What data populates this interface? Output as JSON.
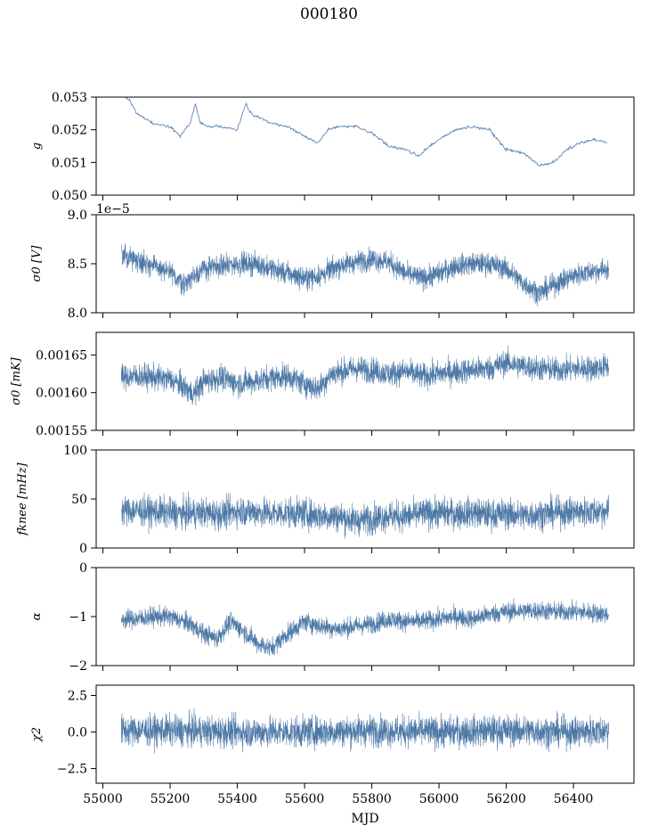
{
  "figure": {
    "title": "000180",
    "series_color": "#4e79a7"
  },
  "chart_data": [
    {
      "type": "line",
      "ylabel": "g",
      "ylim": [
        0.05,
        0.053
      ],
      "yticks": [
        0.05,
        0.051,
        0.052,
        0.053
      ],
      "yticklabels": [
        "0.050",
        "0.051",
        "0.052",
        "0.053"
      ],
      "xlim": [
        54980,
        56580
      ],
      "xticks": [
        55000,
        55200,
        55400,
        55600,
        55800,
        56000,
        56200,
        56400
      ],
      "xticklabels": [],
      "offset_label": "",
      "noise": 3e-05,
      "x": [
        55050,
        55080,
        55100,
        55150,
        55200,
        55230,
        55260,
        55275,
        55290,
        55320,
        55360,
        55400,
        55425,
        55440,
        55500,
        55550,
        55600,
        55640,
        55670,
        55700,
        55750,
        55800,
        55850,
        55900,
        55940,
        55960,
        56000,
        56050,
        56100,
        56150,
        56200,
        56250,
        56300,
        56340,
        56380,
        56420,
        56460,
        56500
      ],
      "y": [
        0.0531,
        0.0529,
        0.0525,
        0.0522,
        0.0521,
        0.0518,
        0.0522,
        0.0528,
        0.0522,
        0.0521,
        0.0521,
        0.052,
        0.0528,
        0.0525,
        0.0522,
        0.0521,
        0.0518,
        0.0516,
        0.052,
        0.0521,
        0.0521,
        0.0519,
        0.0515,
        0.0514,
        0.0512,
        0.0514,
        0.0517,
        0.052,
        0.0521,
        0.052,
        0.0514,
        0.0513,
        0.0509,
        0.051,
        0.0514,
        0.0516,
        0.0517,
        0.0516
      ]
    },
    {
      "type": "line",
      "ylabel": "σ0 [V]",
      "ylim": [
        8e-05,
        9e-05
      ],
      "yticks": [
        8e-05,
        8.5e-05,
        9e-05
      ],
      "yticklabels": [
        "8.0",
        "8.5",
        "9.0"
      ],
      "xlim": [
        54980,
        56580
      ],
      "xticks": [
        55000,
        55200,
        55400,
        55600,
        55800,
        56000,
        56200,
        56400
      ],
      "xticklabels": [],
      "offset_label": "1e−5",
      "noise": 8e-07,
      "x": [
        55055,
        55100,
        55150,
        55200,
        55240,
        55300,
        55400,
        55450,
        55500,
        55550,
        55600,
        55650,
        55700,
        55800,
        55850,
        55900,
        55950,
        56000,
        56050,
        56100,
        56150,
        56200,
        56250,
        56300,
        56350,
        56400,
        56450,
        56505
      ],
      "y": [
        8.58e-05,
        8.55e-05,
        8.48e-05,
        8.4e-05,
        8.3e-05,
        8.45e-05,
        8.5e-05,
        8.5e-05,
        8.45e-05,
        8.4e-05,
        8.35e-05,
        8.38e-05,
        8.48e-05,
        8.55e-05,
        8.52e-05,
        8.4e-05,
        8.35e-05,
        8.4e-05,
        8.48e-05,
        8.5e-05,
        8.5e-05,
        8.45e-05,
        8.3e-05,
        8.2e-05,
        8.3e-05,
        8.38e-05,
        8.42e-05,
        8.45e-05
      ]
    },
    {
      "type": "line",
      "ylabel": "σ0 [mK]",
      "ylim": [
        0.00155,
        0.00168
      ],
      "yticks": [
        0.00155,
        0.0016,
        0.00165
      ],
      "yticklabels": [
        "0.00155",
        "0.00160",
        "0.00165"
      ],
      "xlim": [
        54980,
        56580
      ],
      "xticks": [
        55000,
        55200,
        55400,
        55600,
        55800,
        56000,
        56200,
        56400
      ],
      "xticklabels": [],
      "offset_label": "",
      "noise": 1.2e-05,
      "x": [
        55055,
        55100,
        55150,
        55200,
        55240,
        55270,
        55300,
        55350,
        55400,
        55450,
        55500,
        55550,
        55600,
        55640,
        55680,
        55750,
        55800,
        55850,
        55900,
        55950,
        56000,
        56050,
        56100,
        56150,
        56200,
        56250,
        56300,
        56350,
        56400,
        56450,
        56505
      ],
      "y": [
        0.00162,
        0.001622,
        0.00162,
        0.001618,
        0.001608,
        0.001598,
        0.001615,
        0.00162,
        0.001612,
        0.001615,
        0.00162,
        0.001622,
        0.001612,
        0.001605,
        0.001625,
        0.001632,
        0.00163,
        0.001625,
        0.001628,
        0.001622,
        0.001625,
        0.001628,
        0.00163,
        0.001632,
        0.00164,
        0.001635,
        0.001632,
        0.00163,
        0.001632,
        0.001632,
        0.001635
      ]
    },
    {
      "type": "line",
      "ylabel": "fknee [mHz]",
      "ylim": [
        0,
        100
      ],
      "yticks": [
        0,
        50,
        100
      ],
      "yticklabels": [
        "0",
        "50",
        "100"
      ],
      "xlim": [
        54980,
        56580
      ],
      "xticks": [
        55000,
        55200,
        55400,
        55600,
        55800,
        56000,
        56200,
        56400
      ],
      "xticklabels": [],
      "offset_label": "",
      "noise": 11,
      "x": [
        55055,
        55100,
        55150,
        55200,
        55250,
        55300,
        55350,
        55400,
        55450,
        55500,
        55550,
        55600,
        55650,
        55700,
        55750,
        55800,
        55850,
        55900,
        55950,
        56000,
        56050,
        56100,
        56150,
        56200,
        56250,
        56300,
        56350,
        56400,
        56450,
        56505
      ],
      "y": [
        38,
        38,
        37,
        36,
        35,
        36,
        34,
        38,
        37,
        35,
        36,
        35,
        33,
        32,
        28,
        30,
        33,
        32,
        35,
        36,
        35,
        36,
        34,
        35,
        33,
        35,
        36,
        37,
        37,
        38
      ]
    },
    {
      "type": "line",
      "ylabel": "α",
      "ylim": [
        -2,
        0
      ],
      "yticks": [
        -2,
        -1,
        0
      ],
      "yticklabels": [
        "−2",
        "−1",
        "0"
      ],
      "xlim": [
        54980,
        56580
      ],
      "xticks": [
        55000,
        55200,
        55400,
        55600,
        55800,
        56000,
        56200,
        56400
      ],
      "xticklabels": [],
      "offset_label": "",
      "noise": 0.14,
      "x": [
        55055,
        55100,
        55150,
        55200,
        55260,
        55300,
        55340,
        55380,
        55420,
        55460,
        55500,
        55540,
        55600,
        55650,
        55700,
        55750,
        55800,
        55850,
        55900,
        55950,
        56000,
        56050,
        56100,
        56150,
        56200,
        56250,
        56300,
        56350,
        56400,
        56450,
        56505
      ],
      "y": [
        -1.05,
        -1.05,
        -1.0,
        -1.0,
        -1.15,
        -1.35,
        -1.45,
        -1.1,
        -1.3,
        -1.55,
        -1.65,
        -1.4,
        -1.1,
        -1.2,
        -1.25,
        -1.2,
        -1.15,
        -1.05,
        -1.1,
        -1.1,
        -1.05,
        -1.0,
        -1.05,
        -0.95,
        -0.9,
        -0.88,
        -0.88,
        -0.9,
        -0.9,
        -0.92,
        -0.95
      ]
    },
    {
      "type": "line",
      "ylabel": "χ2",
      "ylim": [
        -3.5,
        3.2
      ],
      "yticks": [
        -2.5,
        0,
        2.5
      ],
      "yticklabels": [
        "−2.5",
        "0.0",
        "2.5"
      ],
      "xlim": [
        54980,
        56580
      ],
      "xticks": [
        55000,
        55200,
        55400,
        55600,
        55800,
        56000,
        56200,
        56400
      ],
      "xticklabels": [
        "55000",
        "55200",
        "55400",
        "55600",
        "55800",
        "56000",
        "56200",
        "56400"
      ],
      "xlabel": "MJD",
      "offset_label": "",
      "noise": 0.75,
      "x": [
        55055,
        55200,
        55400,
        55600,
        55800,
        56000,
        56200,
        56400,
        56505
      ],
      "y": [
        0.1,
        0.1,
        0.0,
        0.0,
        0.1,
        0.0,
        0.1,
        0.0,
        0.1
      ]
    }
  ]
}
